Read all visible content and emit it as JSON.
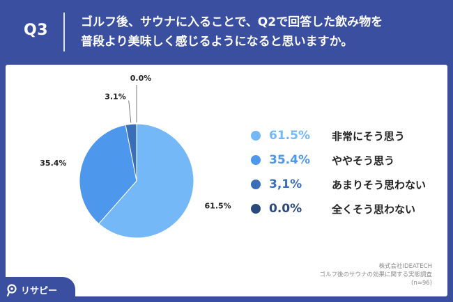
{
  "header": {
    "q_number": "Q3",
    "question_line1": "ゴルフ後、サウナに入ることで、Q2で回答した飲み物を",
    "question_line2": "普段より美味しく感じるようになると思いますか。"
  },
  "chart_data": {
    "type": "pie",
    "title": "",
    "categories": [
      "非常にそう思う",
      "ややそう思う",
      "あまりそう思わない",
      "全くそう思わない"
    ],
    "values": [
      61.5,
      35.4,
      3.1,
      0.0
    ],
    "slice_labels": [
      "61.5%",
      "35.4%",
      "3.1%",
      "0.0%"
    ],
    "legend_values": [
      "61.5%",
      "35.4%",
      "3,1%",
      "0.0%"
    ],
    "colors": [
      "#74b8f8",
      "#4d97ec",
      "#3a6fb8",
      "#2b4a7c"
    ],
    "legend_position": "right"
  },
  "source": {
    "company": "株式会社IDEATECH",
    "survey": "ゴルフ後のサウナの効果に関する実態調査",
    "sample": "(n=96)"
  },
  "brand": {
    "name": "リサピー",
    "icon": "lens-icon"
  }
}
